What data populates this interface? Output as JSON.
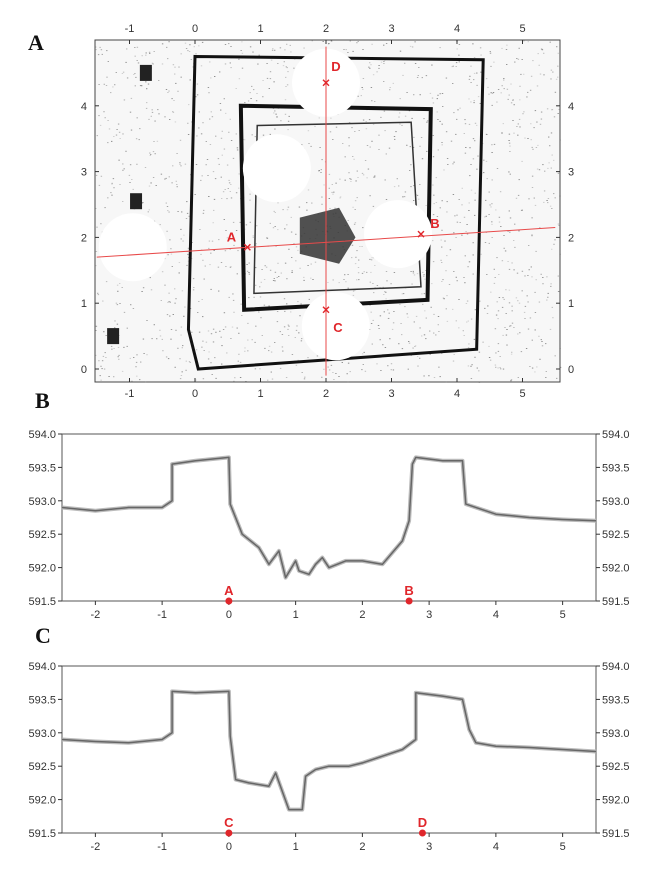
{
  "panels": [
    {
      "letter": "A"
    },
    {
      "letter": "B"
    },
    {
      "letter": "C"
    }
  ],
  "colors": {
    "marker": "#e0262b",
    "profile_line": "#e84a4a",
    "point_cloud": "#111111",
    "profile": "#666666",
    "axis": "#333333"
  },
  "chart_data": [
    {
      "type": "scatter",
      "description_kind": "plan-view point cloud with profile lines",
      "xlim": [
        -1.5,
        5.5
      ],
      "ylim": [
        -0.1,
        4.9
      ],
      "x_ticks": [
        "-1",
        "0",
        "1",
        "2",
        "3",
        "4",
        "5"
      ],
      "y_ticks": [
        "0",
        "1",
        "2",
        "3",
        "4"
      ],
      "grid": false,
      "markers": [
        {
          "label": "A",
          "x": 0.8,
          "y": 1.85
        },
        {
          "label": "B",
          "x": 3.45,
          "y": 2.05
        },
        {
          "label": "C",
          "x": 2.0,
          "y": 0.9
        },
        {
          "label": "D",
          "x": 2.0,
          "y": 4.35
        }
      ],
      "profile_lines": [
        {
          "name": "A-B",
          "from": [
            -1.5,
            1.7
          ],
          "to": [
            5.5,
            2.15
          ]
        },
        {
          "name": "C-D",
          "from": [
            2.0,
            -0.1
          ],
          "to": [
            2.0,
            4.9
          ]
        }
      ]
    },
    {
      "type": "line",
      "xlim": [
        -2.5,
        5.5
      ],
      "ylim": [
        591.5,
        594.0
      ],
      "x_ticks": [
        "-2",
        "-1",
        "0",
        "1",
        "2",
        "3",
        "4",
        "5"
      ],
      "y_ticks": [
        "591.5",
        "592.0",
        "592.5",
        "593.0",
        "593.5",
        "594.0"
      ],
      "grid": false,
      "series": [
        {
          "x": [
            -2.5,
            -2.0,
            -1.5,
            -1.0,
            -0.85,
            -0.85,
            -0.5,
            0.0,
            0.02,
            0.2,
            0.45,
            0.6,
            0.75,
            0.85,
            1.0,
            1.05,
            1.2,
            1.3,
            1.4,
            1.5,
            1.75,
            2.0,
            2.3,
            2.6,
            2.7,
            2.75,
            2.8,
            3.2,
            3.5,
            3.55,
            4.0,
            4.5,
            5.0,
            5.5
          ],
          "y": [
            592.9,
            592.85,
            592.9,
            592.9,
            593.0,
            593.55,
            593.6,
            593.65,
            592.95,
            592.5,
            592.3,
            592.05,
            592.25,
            591.85,
            592.1,
            591.95,
            591.9,
            592.05,
            592.15,
            592.0,
            592.1,
            592.1,
            592.05,
            592.4,
            592.7,
            593.55,
            593.65,
            593.6,
            593.6,
            592.95,
            592.8,
            592.75,
            592.72,
            592.7
          ]
        }
      ],
      "points": [
        {
          "label": "A",
          "x": 0.0,
          "y": 591.5
        },
        {
          "label": "B",
          "x": 2.7,
          "y": 591.5
        }
      ]
    },
    {
      "type": "line",
      "xlim": [
        -2.5,
        5.5
      ],
      "ylim": [
        591.5,
        594.0
      ],
      "x_ticks": [
        "-2",
        "-1",
        "0",
        "1",
        "2",
        "3",
        "4",
        "5"
      ],
      "y_ticks": [
        "591.5",
        "592.0",
        "592.5",
        "593.0",
        "593.5",
        "594.0"
      ],
      "grid": false,
      "series": [
        {
          "x": [
            -2.5,
            -2.0,
            -1.5,
            -1.0,
            -0.85,
            -0.85,
            -0.5,
            0.0,
            0.02,
            0.1,
            0.3,
            0.6,
            0.7,
            0.9,
            1.1,
            1.15,
            1.3,
            1.5,
            1.8,
            2.0,
            2.3,
            2.6,
            2.8,
            2.8,
            3.2,
            3.5,
            3.6,
            3.7,
            4.0,
            4.5,
            5.0,
            5.5
          ],
          "y": [
            592.9,
            592.87,
            592.85,
            592.9,
            593.0,
            593.62,
            593.6,
            593.62,
            592.95,
            592.3,
            592.25,
            592.2,
            592.4,
            591.85,
            591.85,
            592.35,
            592.45,
            592.5,
            592.5,
            592.55,
            592.65,
            592.75,
            592.9,
            593.6,
            593.55,
            593.5,
            593.05,
            592.85,
            592.8,
            592.78,
            592.75,
            592.72
          ]
        }
      ],
      "points": [
        {
          "label": "C",
          "x": 0.0,
          "y": 591.5
        },
        {
          "label": "D",
          "x": 2.9,
          "y": 591.5
        }
      ]
    }
  ]
}
